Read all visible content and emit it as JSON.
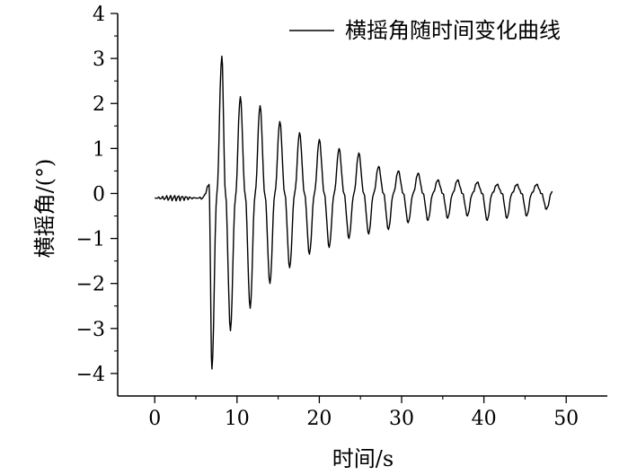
{
  "chart_data": {
    "type": "line",
    "title": "",
    "xlabel": "时间/s",
    "ylabel": "横摇角/(°)",
    "xlim": [
      -4.5,
      55
    ],
    "ylim": [
      -4.5,
      4
    ],
    "xticks": [
      0,
      10,
      20,
      30,
      40,
      50
    ],
    "yticks": [
      -4,
      -3,
      -2,
      -1,
      0,
      1,
      2,
      3,
      4
    ],
    "ytick_labels": [
      "−4",
      "−3",
      "−2",
      "−1",
      "0",
      "1",
      "2",
      "3",
      "4"
    ],
    "legend": {
      "position": "top-right"
    },
    "grid": false,
    "series": [
      {
        "name": "横摇角随时间变化曲线",
        "color": "#000000",
        "x": [
          0.0,
          6.0,
          6.6,
          6.95,
          7.55,
          8.15,
          8.6,
          9.2,
          9.8,
          10.4,
          11.0,
          11.6,
          12.2,
          12.8,
          13.4,
          14.0,
          14.6,
          15.2,
          15.8,
          16.4,
          17.0,
          17.6,
          18.2,
          18.8,
          19.4,
          20.0,
          20.6,
          21.2,
          21.8,
          22.4,
          23.0,
          23.6,
          24.2,
          24.8,
          25.4,
          26.0,
          26.6,
          27.2,
          27.8,
          28.4,
          29.0,
          29.6,
          30.2,
          30.8,
          31.4,
          32.0,
          32.6,
          33.2,
          33.8,
          34.4,
          35.0,
          35.6,
          36.2,
          36.8,
          37.4,
          38.0,
          38.6,
          39.2,
          39.8,
          40.4,
          41.0,
          41.6,
          42.2,
          42.8,
          43.4,
          44.0,
          44.6,
          45.2,
          45.8,
          46.4,
          47.0,
          47.6,
          48.3
        ],
        "y": [
          -0.1,
          -0.05,
          0.2,
          -3.9,
          0.0,
          3.05,
          0.0,
          -3.05,
          -0.1,
          2.15,
          -0.05,
          -2.55,
          0.0,
          1.95,
          -0.05,
          -2.0,
          0.0,
          1.6,
          0.0,
          -1.65,
          0.0,
          1.35,
          0.0,
          -1.35,
          0.0,
          1.2,
          0.0,
          -1.2,
          0.0,
          1.0,
          0.0,
          -1.0,
          0.0,
          0.9,
          0.0,
          -0.9,
          0.0,
          0.6,
          0.0,
          -0.8,
          0.0,
          0.5,
          0.0,
          -0.65,
          0.0,
          0.45,
          0.0,
          -0.6,
          0.0,
          0.3,
          0.0,
          -0.55,
          0.0,
          0.3,
          0.0,
          -0.5,
          0.0,
          0.25,
          0.0,
          -0.6,
          0.0,
          0.2,
          0.0,
          -0.55,
          0.0,
          0.2,
          0.0,
          -0.5,
          0.0,
          0.2,
          0.0,
          -0.35,
          0.05
        ]
      }
    ]
  }
}
